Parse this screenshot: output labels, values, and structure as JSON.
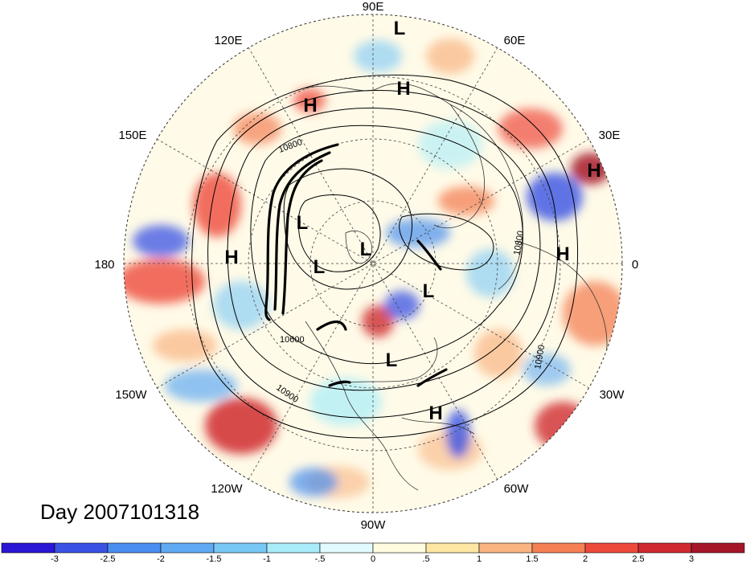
{
  "longitude_labels": {
    "lon_90e": "90E",
    "lon_120e": "120E",
    "lon_60e": "60E",
    "lon_150e": "150E",
    "lon_30e": "30E",
    "lon_180": "180",
    "lon_0": "0",
    "lon_150w": "150W",
    "lon_30w": "30W",
    "lon_120w": "120W",
    "lon_60w": "60W",
    "lon_90w": "90W"
  },
  "pressure_centers": {
    "l1": "L",
    "h1": "H",
    "h2": "H",
    "h3": "H",
    "l2": "L",
    "h4": "H",
    "l3": "L",
    "l4": "L",
    "h5": "H",
    "l5": "L",
    "l6": "L",
    "h6": "H"
  },
  "contour_labels": {
    "c10800_a": "10800",
    "c10800_b": "10800",
    "c10600": "10600",
    "c10900_a": "10900",
    "c10900_b": "10900"
  },
  "date_label": "Day 2007101318",
  "colorbar": {
    "colors": [
      "#2a16d4",
      "#3a52e4",
      "#4a8ef0",
      "#60aaf3",
      "#78c8f6",
      "#a8ecfa",
      "#e0fbfd",
      "#fffbe0",
      "#fde6a2",
      "#f9b482",
      "#f48054",
      "#ee4a3c",
      "#d02a30",
      "#a6162a"
    ],
    "labels": [
      "-3",
      "-2.5",
      "-2",
      "-1.5",
      "-1",
      "-.5",
      "0",
      ".5",
      "1",
      "1.5",
      "2",
      "2.5",
      "3"
    ]
  }
}
